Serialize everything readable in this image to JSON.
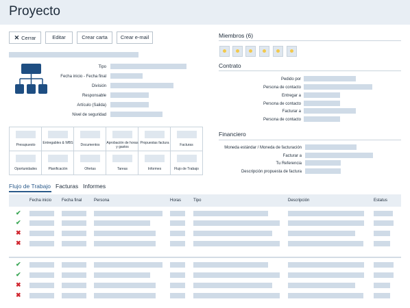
{
  "page": {
    "title": "Proyecto"
  },
  "toolbar": {
    "close_label": "Cerrar",
    "edit_label": "Editar",
    "letter_label": "Crear carta",
    "email_label": "Crear e-mail"
  },
  "details": {
    "fields": [
      "Tipo",
      "Fecha inicio - Fecha final",
      "División",
      "Responsable",
      "Artículo (Salida)",
      "Nivel de seguridad"
    ]
  },
  "modules": [
    "Presupuesto",
    "Entregables & WBS",
    "Documentos",
    "Aprobación de horas y gastos",
    "Propuestas factura",
    "Facturas",
    "Oportunidades",
    "Planificación",
    "Ofertas",
    "Tareas",
    "Informes",
    "Flujo de Trabajo"
  ],
  "members": {
    "title": "Miembros (6)",
    "count": 6
  },
  "contract": {
    "title": "Contrato",
    "fields": [
      "Pedido por",
      "Persona de contacto",
      "Entregar a",
      "Persona de contacto",
      "Facturar a",
      "Persona de contacto"
    ]
  },
  "financial": {
    "title": "Financiero",
    "fields": [
      "Moneda estándar / Moneda de facturación",
      "Facturar a",
      "Tu Referencia",
      "Descripción propuesta de factura"
    ]
  },
  "tabs": {
    "workflow": "Flujo de Trabajo",
    "invoices": "Facturas",
    "reports": "Informes"
  },
  "table": {
    "headers": {
      "start": "Fecha inicio",
      "end": "Fecha final",
      "person": "Persona",
      "hours": "Horas",
      "type": "Tipo",
      "description": "Descripción",
      "status": "Estatus"
    },
    "group1_status": [
      "approved",
      "approved",
      "rejected",
      "rejected"
    ],
    "group2_status": [
      "approved",
      "approved",
      "rejected",
      "rejected"
    ]
  },
  "colors": {
    "accent": "#2a5a8a",
    "placeholder": "#cfdbe7",
    "approved": "#3aa655",
    "rejected": "#d0262f"
  },
  "icons": {
    "close": "close-icon",
    "hierarchy": "org-chart-icon",
    "check": "check-icon",
    "cross": "cross-icon"
  }
}
